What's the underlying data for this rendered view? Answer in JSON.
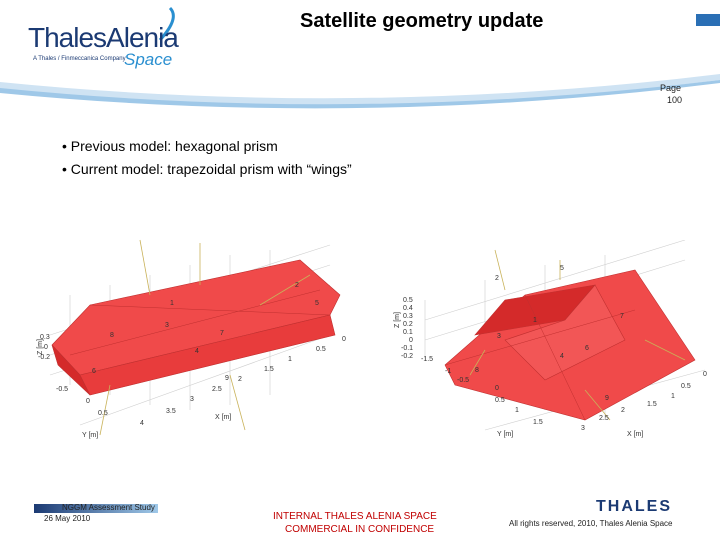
{
  "header": {
    "logo_main": "ThalesAlenia",
    "logo_sub": "A Thales / Finmeccanica Company",
    "logo_space": "Space",
    "title": "Satellite geometry update",
    "page_label": "Page",
    "page_number": "100"
  },
  "bullets": [
    "• Previous model: hexagonal prism",
    "• Current model: trapezoidal prism with “wings”"
  ],
  "left_plot": {
    "z_label": "Z [m]",
    "y_label": "Y [m]",
    "x_label": "X [m]",
    "z_ticks": [
      "0.3",
      "0",
      "-0.2"
    ],
    "y_ticks": [
      "-0.5",
      "0",
      "0.5"
    ],
    "x_ticks": [
      "0",
      "0.5",
      "1",
      "1.5",
      "2",
      "2.5",
      "3",
      "3.5",
      "4"
    ],
    "face_labels": [
      "1",
      "2",
      "3",
      "4",
      "5",
      "6",
      "7",
      "8",
      "9"
    ]
  },
  "right_plot": {
    "z_label": "Z [m]",
    "y_label": "Y [m]",
    "x_label": "X [m]",
    "z_ticks": [
      "0.5",
      "0.4",
      "0.3",
      "0.2",
      "0.1",
      "0",
      "-0.1",
      "-0.2"
    ],
    "y_ticks": [
      "-1.5",
      "-1",
      "-0.5",
      "0",
      "0.5",
      "1",
      "1.5"
    ],
    "x_ticks": [
      "0",
      "0.5",
      "1",
      "1.5",
      "2",
      "2.5",
      "3"
    ],
    "face_labels": [
      "1",
      "2",
      "3",
      "4",
      "5",
      "6",
      "7",
      "8",
      "9"
    ]
  },
  "footer": {
    "study": "NGGM Assessment Study",
    "date": "26 May 2010",
    "confidential_line1": "INTERNAL THALES ALENIA SPACE",
    "confidential_line2": "COMMERCIAL IN CONFIDENCE",
    "brand": "THALES",
    "rights": "All rights reserved, 2010, Thales Alenia Space"
  },
  "colors": {
    "prism_fill": "#f04a4a",
    "prism_dark": "#d42a2a",
    "brand_blue": "#1b3a73",
    "accent_blue": "#2a8fd0",
    "confidential_red": "#c00000"
  }
}
